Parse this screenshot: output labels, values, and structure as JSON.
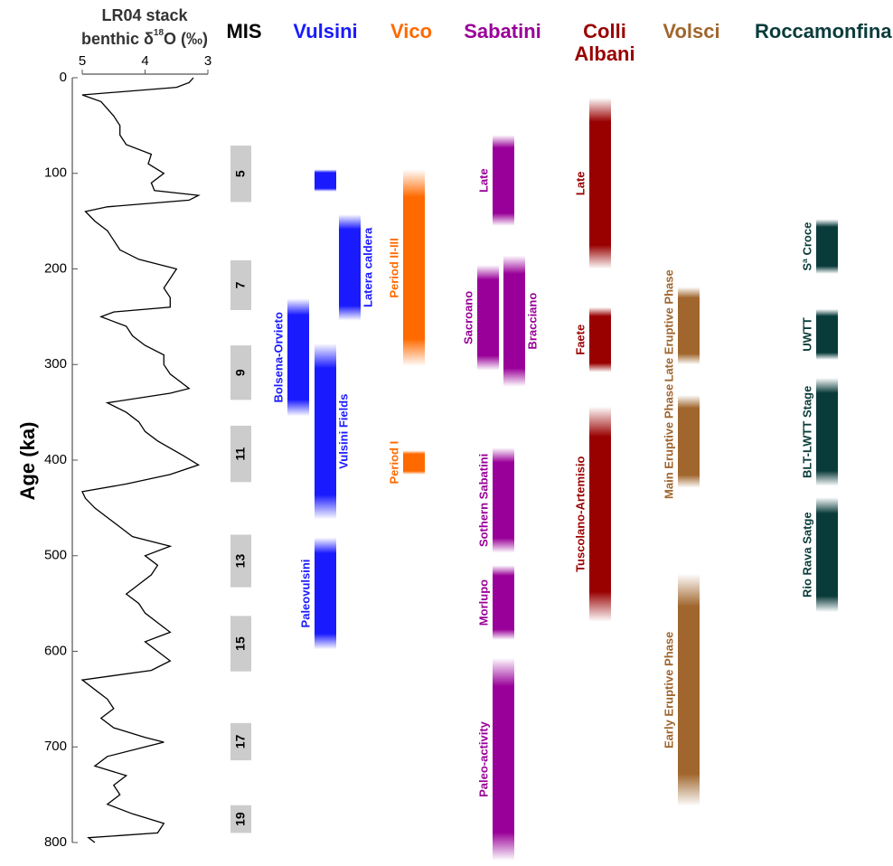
{
  "chart_data": {
    "type": "line",
    "x_label": {
      "line1": "LR04 stack",
      "line2": [
        "benthic δ",
        "18",
        "O (‰)"
      ]
    },
    "y_label": "Age (ka)",
    "xlim": [
      5,
      3
    ],
    "xticks": [
      5,
      4,
      3
    ],
    "ylim": [
      0,
      800
    ],
    "yticks": [
      0,
      100,
      200,
      300,
      400,
      500,
      600,
      700,
      800
    ],
    "series": [
      {
        "color": "#000000",
        "y": [
          0,
          5,
          10,
          18,
          25,
          40,
          50,
          60,
          70,
          80,
          90,
          100,
          110,
          118,
          123,
          128,
          135,
          140,
          150,
          160,
          170,
          180,
          190,
          200,
          210,
          220,
          230,
          240,
          245,
          250,
          255,
          260,
          270,
          280,
          290,
          300,
          310,
          320,
          325,
          330,
          340,
          350,
          360,
          370,
          380,
          395,
          405,
          415,
          425,
          433,
          440,
          450,
          460,
          470,
          480,
          490,
          500,
          510,
          520,
          530,
          540,
          550,
          560,
          575,
          580,
          590,
          600,
          610,
          620,
          630,
          640,
          650,
          660,
          670,
          680,
          690,
          695,
          700,
          710,
          720,
          730,
          740,
          750,
          760,
          770,
          780,
          790,
          795,
          800
        ],
        "x": [
          3.23,
          3.3,
          3.5,
          5.0,
          4.7,
          4.5,
          4.4,
          4.4,
          4.3,
          3.9,
          3.95,
          3.7,
          3.9,
          3.85,
          3.15,
          3.3,
          4.6,
          4.95,
          4.8,
          4.6,
          4.5,
          4.4,
          4.1,
          3.5,
          3.6,
          3.7,
          3.6,
          3.6,
          4.5,
          4.7,
          4.5,
          4.3,
          4.2,
          4.0,
          3.7,
          3.7,
          3.6,
          3.4,
          3.3,
          3.6,
          4.6,
          4.3,
          4.1,
          4.0,
          3.8,
          3.4,
          3.15,
          3.6,
          4.3,
          5.0,
          4.95,
          4.8,
          4.6,
          4.4,
          4.2,
          3.6,
          4.0,
          3.8,
          3.9,
          4.1,
          4.3,
          4.1,
          4.0,
          3.7,
          3.6,
          4.0,
          3.8,
          3.6,
          3.9,
          5.0,
          4.8,
          4.6,
          4.5,
          4.7,
          4.5,
          4.0,
          3.7,
          4.0,
          4.6,
          4.8,
          4.3,
          4.5,
          4.4,
          4.6,
          4.2,
          3.7,
          3.8,
          4.9,
          4.8
        ]
      }
    ],
    "mis": {
      "label": "MIS",
      "color": "#cccccc",
      "units": [
        {
          "label": "5",
          "start": 71,
          "end": 130
        },
        {
          "label": "7",
          "start": 191,
          "end": 243
        },
        {
          "label": "9",
          "start": 280,
          "end": 337
        },
        {
          "label": "11",
          "start": 364,
          "end": 423
        },
        {
          "label": "13",
          "start": 478,
          "end": 533
        },
        {
          "label": "15",
          "start": 563,
          "end": 621
        },
        {
          "label": "17",
          "start": 675,
          "end": 714
        },
        {
          "label": "19",
          "start": 761,
          "end": 790
        }
      ]
    },
    "groups": [
      {
        "name": "Vulsini",
        "color": "#1a1aff",
        "units": [
          {
            "label": null,
            "start": 96,
            "end": 119
          },
          {
            "label": "Latera caldera",
            "start": 143,
            "end": 254
          },
          {
            "label": "Bolsena-Orvieto",
            "start": 231,
            "end": 354
          },
          {
            "label": "Vulsini Fields",
            "start": 278,
            "end": 462
          },
          {
            "label": "Paleovulsini",
            "start": 481,
            "end": 598
          }
        ]
      },
      {
        "name": "Vico",
        "color": "#ff6a00",
        "units": [
          {
            "label": "Period II-III",
            "start": 96,
            "end": 302
          },
          {
            "label": "Period I",
            "start": 390,
            "end": 415
          }
        ]
      },
      {
        "name": "Sabatini",
        "color": "#990099",
        "units": [
          {
            "label": "Late",
            "start": 60,
            "end": 155
          },
          {
            "label": "Sacroano",
            "start": 196,
            "end": 306
          },
          {
            "label": "Bracciano",
            "start": 186,
            "end": 323
          },
          {
            "label": "Sothern Sabatini",
            "start": 387,
            "end": 497
          },
          {
            "label": "Morlupo",
            "start": 510,
            "end": 588
          },
          {
            "label": "Paleo-activity",
            "start": 607,
            "end": 819
          }
        ]
      },
      {
        "name": "Colli Albani",
        "color": "#990000",
        "units": [
          {
            "label": "Late",
            "start": 21,
            "end": 200
          },
          {
            "label": "Faete",
            "start": 240,
            "end": 308
          },
          {
            "label": "Tuscolano-Artemisio",
            "start": 344,
            "end": 569
          }
        ]
      },
      {
        "name": "Volsci",
        "color": "#a0662d",
        "units": [
          {
            "label": "Late Eruptive Phase",
            "start": 219,
            "end": 300
          },
          {
            "label": "Main Eruptive Phase",
            "start": 332,
            "end": 429
          },
          {
            "label": "Early Eruptive Phase",
            "start": 519,
            "end": 762
          }
        ]
      },
      {
        "name": "Roccamonfina",
        "color": "#0a3b3b",
        "units": [
          {
            "label": "Sª Croce",
            "start": 148,
            "end": 205
          },
          {
            "label": "UWTT",
            "start": 242,
            "end": 295
          },
          {
            "label": "BLT-LWTT Stage",
            "start": 314,
            "end": 427
          },
          {
            "label": "Rio Rava Satge",
            "start": 439,
            "end": 559
          }
        ]
      }
    ]
  }
}
